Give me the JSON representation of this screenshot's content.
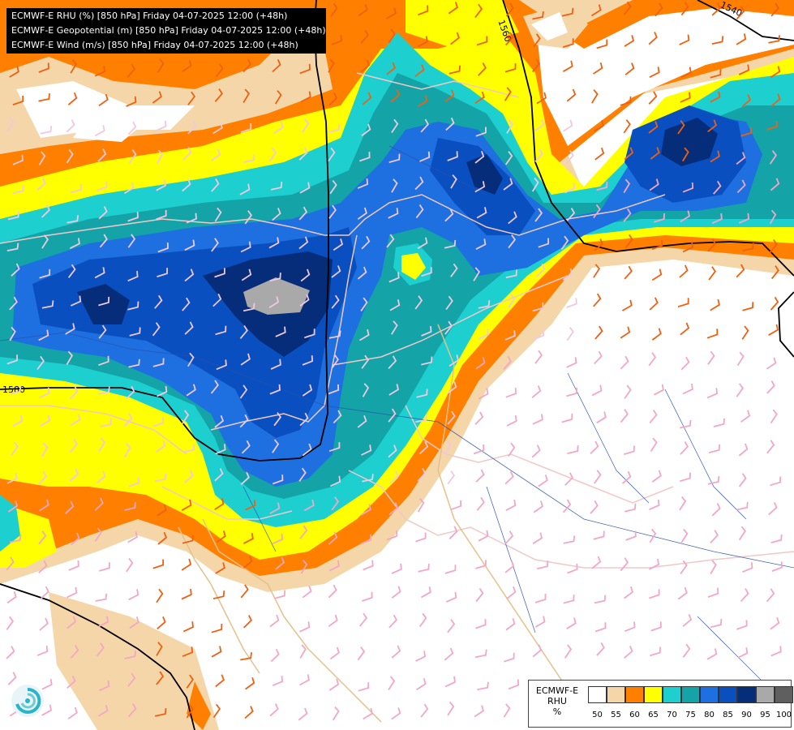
{
  "title_lines": [
    "ECMWF-E RHU (%) [850 hPa] Friday 04-07-2025 12:00 (+48h)",
    "ECMWF-E Geopotential (m) [850 hPa] Friday 04-07-2025 12:00 (+48h)",
    "ECMWF-E Wind (m/s) [850 hPa] Friday 04-07-2025 12:00 (+48h)"
  ],
  "legend": {
    "model": "ECMWF-E",
    "variable": "RHU",
    "unit": "%",
    "levels": [
      "50",
      "55",
      "60",
      "65",
      "70",
      "75",
      "80",
      "85",
      "90",
      "95",
      "100"
    ],
    "colors": [
      "#ffffff",
      "#f5d6a8",
      "#ff8000",
      "#ffff00",
      "#1ecfd0",
      "#14a4a8",
      "#1e6fe0",
      "#0a4fc0",
      "#062d7a",
      "#a9a9a9",
      "#5f5f5f"
    ]
  },
  "isolines": [
    {
      "label": "1580"
    },
    {
      "label": "1560"
    },
    {
      "label": "1540"
    }
  ],
  "icons": {
    "logo": "ecmwf-swirl-logo-icon"
  }
}
